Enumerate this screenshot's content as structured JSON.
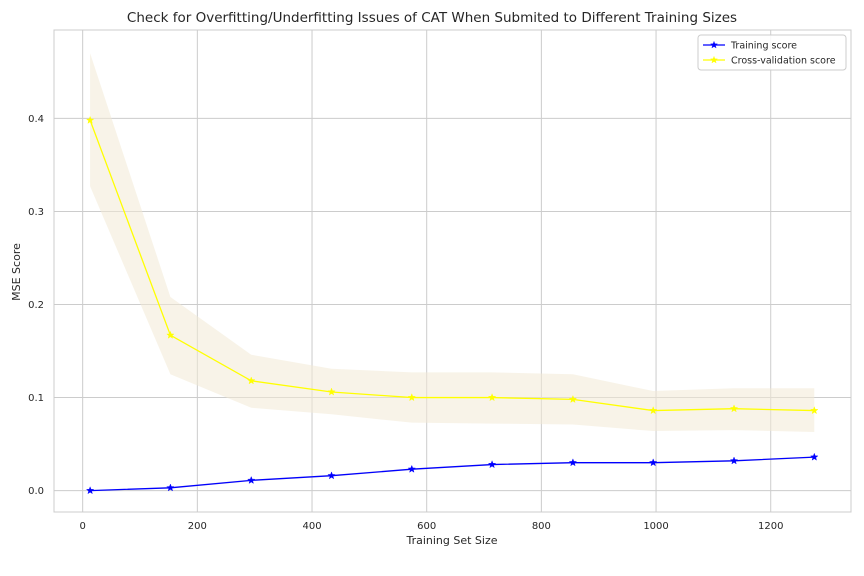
{
  "chart_data": {
    "type": "line",
    "title": "Check for Overfitting/Underfitting Issues of CAT When Submited to Different Training Sizes",
    "xlabel": "Training Set Size",
    "ylabel": "MSE Score",
    "xlim": [
      -50,
      1340
    ],
    "ylim": [
      -0.023,
      0.495
    ],
    "xticks": [
      0,
      200,
      400,
      600,
      800,
      1000,
      1200
    ],
    "yticks": [
      0.0,
      0.1,
      0.2,
      0.3,
      0.4
    ],
    "xtick_labels": [
      "0",
      "200",
      "400",
      "600",
      "800",
      "1000",
      "1200"
    ],
    "ytick_labels": [
      "0.0",
      "0.1",
      "0.2",
      "0.3",
      "0.4"
    ],
    "grid": true,
    "legend_position": "top-right",
    "x": [
      13,
      153,
      294,
      434,
      574,
      714,
      855,
      995,
      1136,
      1276
    ],
    "series": [
      {
        "name": "Training score",
        "color": "#0000ff",
        "marker": "star",
        "values": [
          0.0,
          0.003,
          0.011,
          0.016,
          0.023,
          0.028,
          0.03,
          0.03,
          0.032,
          0.036
        ],
        "band_lower": [
          0.0,
          0.002,
          0.01,
          0.015,
          0.022,
          0.027,
          0.029,
          0.029,
          0.031,
          0.035
        ],
        "band_upper": [
          0.0,
          0.004,
          0.012,
          0.017,
          0.024,
          0.029,
          0.031,
          0.031,
          0.033,
          0.037
        ]
      },
      {
        "name": "Cross-validation score",
        "color": "#ffff00",
        "marker": "star",
        "values": [
          0.398,
          0.167,
          0.118,
          0.106,
          0.1,
          0.1,
          0.098,
          0.086,
          0.088,
          0.086
        ],
        "band_lower": [
          0.327,
          0.125,
          0.089,
          0.082,
          0.073,
          0.072,
          0.071,
          0.064,
          0.065,
          0.063
        ],
        "band_upper": [
          0.47,
          0.208,
          0.146,
          0.131,
          0.127,
          0.127,
          0.125,
          0.107,
          0.11,
          0.11
        ]
      }
    ],
    "band_color": "#f2ead6"
  }
}
